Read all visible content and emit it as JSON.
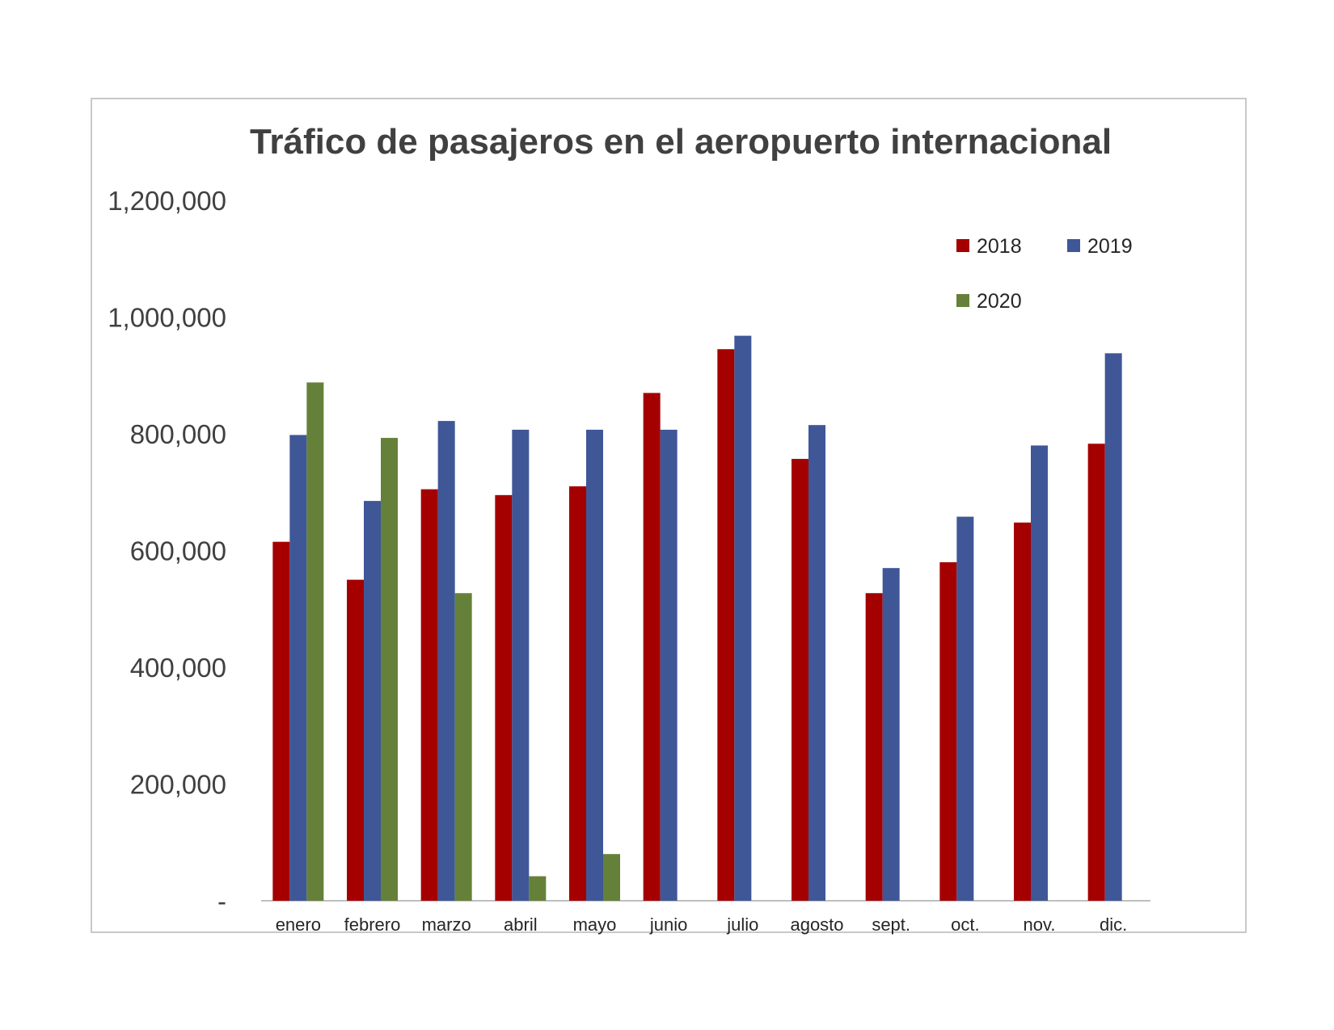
{
  "chart_data": {
    "type": "bar",
    "title": "Tráfico de pasajeros en el aeropuerto internacional",
    "categories": [
      "enero",
      "febrero",
      "marzo",
      "abril",
      "mayo",
      "junio",
      "julio",
      "agosto",
      "sept.",
      "oct.",
      "nov.",
      "dic."
    ],
    "series": [
      {
        "name": "2018",
        "color": "#a50000",
        "values": [
          615000,
          550000,
          705000,
          695000,
          710000,
          870000,
          945000,
          757000,
          527000,
          580000,
          648000,
          783000
        ]
      },
      {
        "name": "2019",
        "color": "#3f5797",
        "values": [
          798000,
          685000,
          822000,
          807000,
          807000,
          807000,
          968000,
          815000,
          570000,
          658000,
          780000,
          938000
        ]
      },
      {
        "name": "2020",
        "color": "#658139",
        "values": [
          888000,
          793000,
          527000,
          42000,
          80000,
          null,
          null,
          null,
          null,
          null,
          null,
          null
        ]
      }
    ],
    "ylim": [
      0,
      1200000
    ],
    "yticks": [
      0,
      200000,
      400000,
      600000,
      800000,
      1000000,
      1200000
    ],
    "ytick_labels": [
      "-",
      "200,000",
      "400,000",
      "600,000",
      "800,000",
      "1,000,000",
      "1,200,000"
    ],
    "xlabel": "",
    "ylabel": "",
    "grid": false,
    "legend": "top-right"
  }
}
